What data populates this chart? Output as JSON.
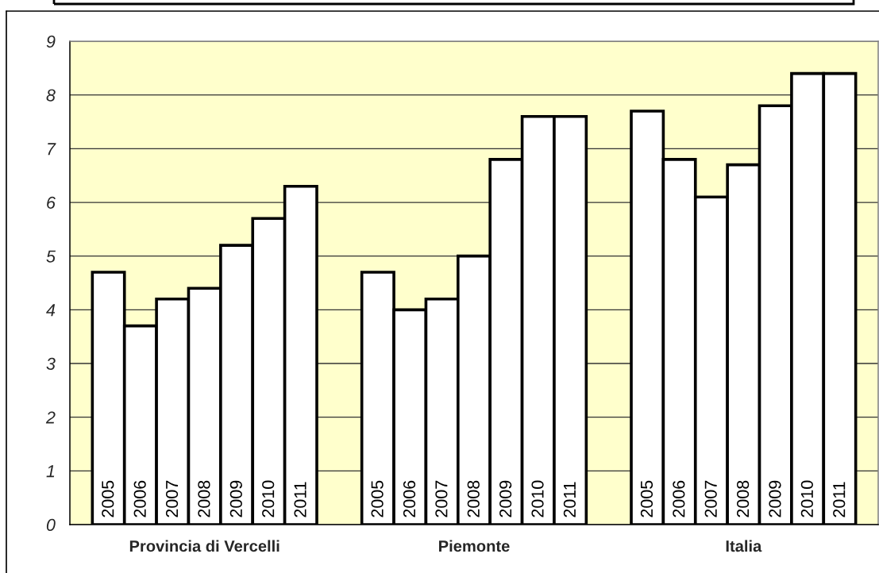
{
  "chart_data": {
    "type": "bar",
    "categories": [
      "Provincia di Vercelli",
      "Piemonte",
      "Italia"
    ],
    "series": [
      {
        "name": "2005",
        "color": "#ffffff",
        "values": [
          4.7,
          4.7,
          7.7
        ]
      },
      {
        "name": "2006",
        "color": "#ffffff",
        "values": [
          3.7,
          4.0,
          6.8
        ]
      },
      {
        "name": "2007",
        "color": "#ffffff",
        "values": [
          4.2,
          4.2,
          6.1
        ]
      },
      {
        "name": "2008",
        "color": "#ffffff",
        "values": [
          4.4,
          5.0,
          6.7
        ]
      },
      {
        "name": "2009",
        "color": "#ffffff",
        "values": [
          5.2,
          6.8,
          7.8
        ]
      },
      {
        "name": "2010",
        "color": "#ffffff",
        "values": [
          5.7,
          7.6,
          8.4
        ]
      },
      {
        "name": "2011",
        "color": "#ffffff",
        "values": [
          6.3,
          7.6,
          8.4
        ]
      }
    ],
    "bands": [
      {
        "axis": "y",
        "from": 0,
        "to": 9,
        "color": "#ffffcc"
      }
    ],
    "ylim": [
      0,
      9
    ],
    "yticks": [
      0,
      1,
      2,
      3,
      4,
      5,
      6,
      7,
      8,
      9
    ],
    "grid": "y",
    "legend": false
  }
}
